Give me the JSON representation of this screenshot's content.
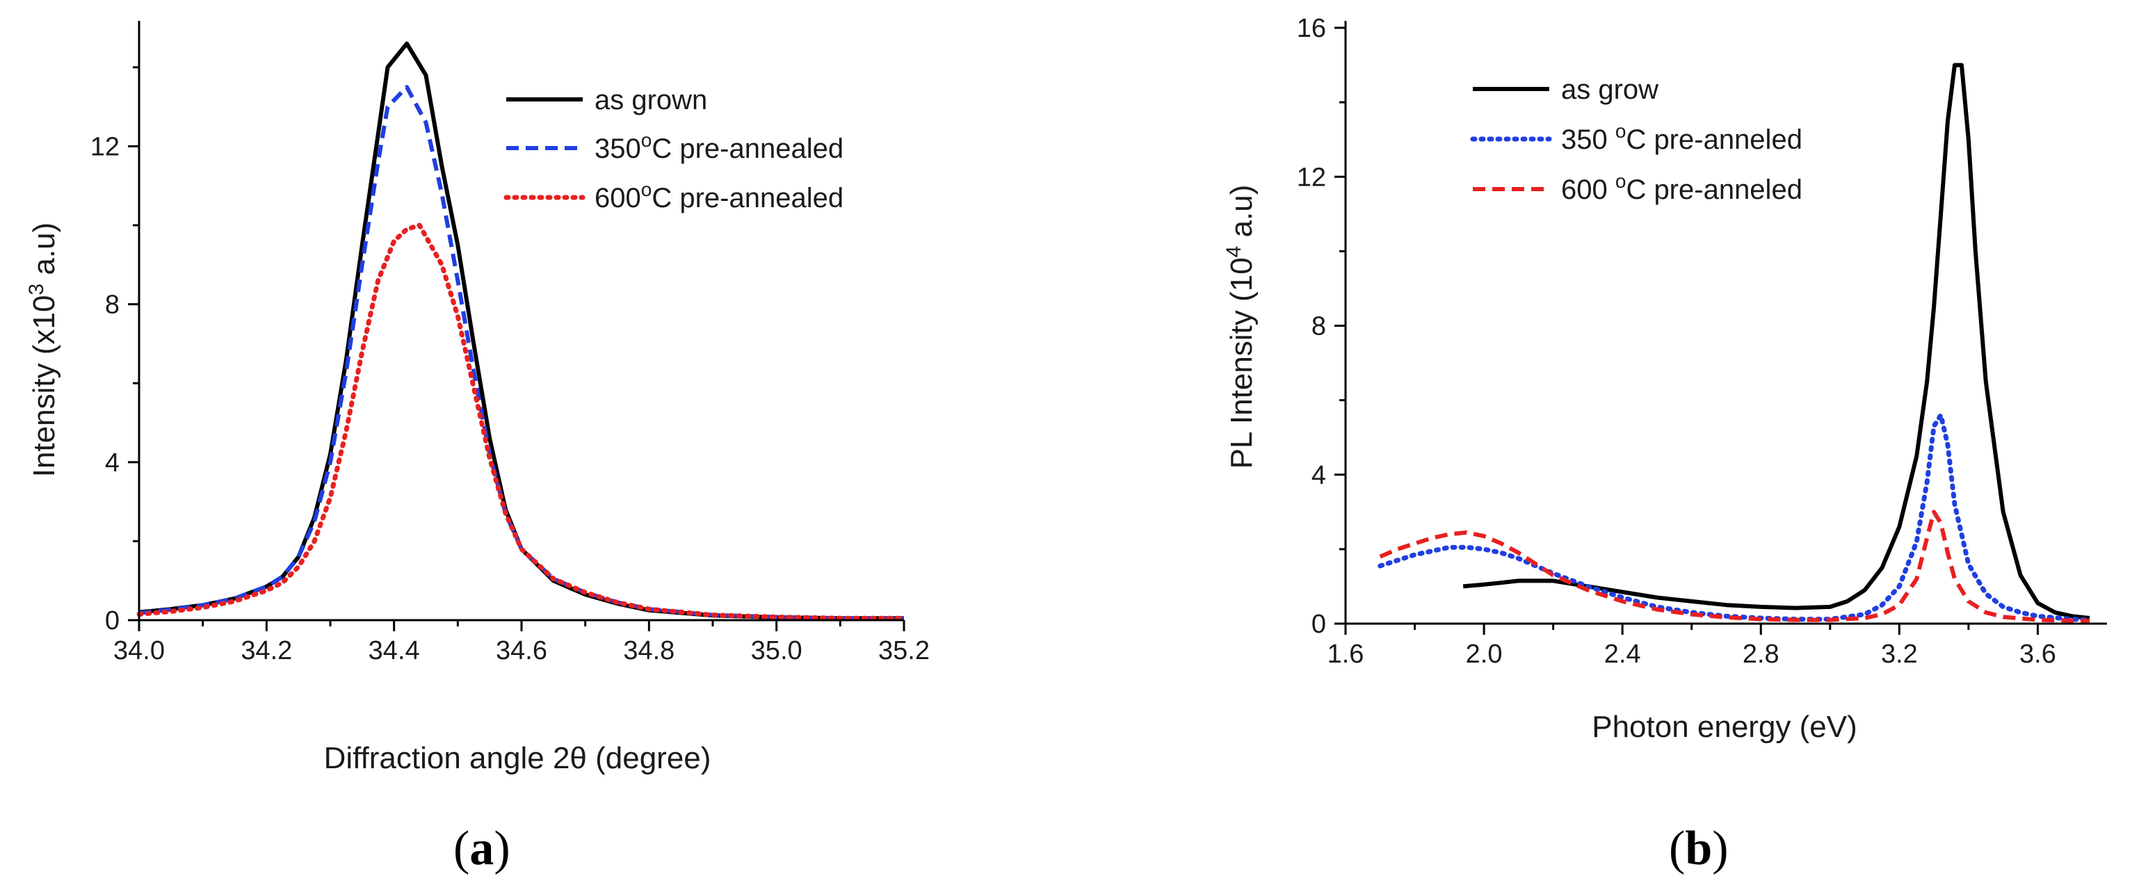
{
  "chart_data": [
    {
      "panel_label": "(a)",
      "panel_letter": "a",
      "type": "line",
      "xlabel": "Diffraction angle 2θ (degree)",
      "ylabel": {
        "prefix": "Intensity (x10",
        "sup": "3",
        "suffix": " a.u)"
      },
      "xlim": [
        34.0,
        35.2
      ],
      "ylim": [
        0,
        15
      ],
      "xticks": [
        34.0,
        34.2,
        34.4,
        34.6,
        34.8,
        35.0,
        35.2
      ],
      "xtick_labels": [
        "34.0",
        "34.2",
        "34.4",
        "34.6",
        "34.8",
        "35.0",
        "35.2"
      ],
      "yticks": [
        0,
        4,
        8,
        12
      ],
      "ytick_labels": [
        "0",
        "4",
        "8",
        "12"
      ],
      "legend_position": "top-right",
      "series": [
        {
          "name": "as grown",
          "legend": {
            "pre": "as grown",
            "sup": "",
            "post": ""
          },
          "color": "#000000",
          "style": "solid",
          "x": [
            34.0,
            34.05,
            34.1,
            34.15,
            34.2,
            34.225,
            34.25,
            34.275,
            34.3,
            34.325,
            34.35,
            34.375,
            34.39,
            34.42,
            34.45,
            34.475,
            34.5,
            34.525,
            34.55,
            34.575,
            34.6,
            34.65,
            34.7,
            34.75,
            34.8,
            34.9,
            35.0,
            35.1,
            35.2
          ],
          "y": [
            0.2,
            0.28,
            0.38,
            0.55,
            0.85,
            1.1,
            1.6,
            2.6,
            4.2,
            6.6,
            9.5,
            12.3,
            14.0,
            14.6,
            13.8,
            11.5,
            9.5,
            7.0,
            4.6,
            2.8,
            1.8,
            1.0,
            0.65,
            0.42,
            0.25,
            0.12,
            0.07,
            0.05,
            0.05
          ]
        },
        {
          "name": "350oC pre-annealed",
          "legend": {
            "pre": "350",
            "sup": "o",
            "post": "C pre-annealed"
          },
          "color": "#1f3fe0",
          "style": "dashed",
          "x": [
            34.0,
            34.05,
            34.1,
            34.15,
            34.2,
            34.225,
            34.25,
            34.275,
            34.3,
            34.325,
            34.35,
            34.375,
            34.39,
            34.42,
            34.45,
            34.475,
            34.5,
            34.525,
            34.55,
            34.575,
            34.6,
            34.65,
            34.7,
            34.75,
            34.8,
            34.9,
            35.0,
            35.1,
            35.2
          ],
          "y": [
            0.18,
            0.27,
            0.38,
            0.55,
            0.85,
            1.1,
            1.6,
            2.5,
            4.0,
            6.3,
            9.0,
            11.6,
            13.0,
            13.5,
            12.6,
            10.8,
            8.6,
            6.3,
            4.2,
            2.7,
            1.8,
            1.05,
            0.7,
            0.45,
            0.28,
            0.13,
            0.08,
            0.05,
            0.05
          ]
        },
        {
          "name": "600oC pre-annealed",
          "legend": {
            "pre": "600",
            "sup": "o",
            "post": "C pre-annealed"
          },
          "color": "#e82020",
          "style": "dotted",
          "x": [
            34.0,
            34.05,
            34.1,
            34.15,
            34.2,
            34.225,
            34.25,
            34.275,
            34.3,
            34.325,
            34.35,
            34.375,
            34.4,
            34.42,
            34.44,
            34.475,
            34.5,
            34.525,
            34.55,
            34.575,
            34.6,
            34.65,
            34.7,
            34.75,
            34.8,
            34.9,
            35.0,
            35.1,
            35.2
          ],
          "y": [
            0.15,
            0.22,
            0.32,
            0.48,
            0.75,
            0.95,
            1.35,
            2.0,
            3.1,
            4.8,
            6.8,
            8.6,
            9.6,
            9.9,
            10.0,
            9.0,
            7.7,
            5.9,
            4.1,
            2.7,
            1.8,
            1.05,
            0.7,
            0.45,
            0.28,
            0.13,
            0.08,
            0.05,
            0.05
          ]
        }
      ]
    },
    {
      "panel_label": "(b)",
      "panel_letter": "b",
      "type": "line",
      "xlabel": "Photon energy (eV)",
      "ylabel": {
        "prefix": "PL Intensity (10",
        "sup": "4",
        "suffix": " a.u)"
      },
      "xlim": [
        1.6,
        3.8
      ],
      "ylim": [
        0,
        16
      ],
      "xticks": [
        1.6,
        2.0,
        2.4,
        2.8,
        3.2,
        3.6
      ],
      "xtick_labels": [
        "1.6",
        "2.0",
        "2.4",
        "2.8",
        "3.2",
        "3.6"
      ],
      "yticks": [
        0,
        4,
        8,
        12,
        16
      ],
      "ytick_labels": [
        "0",
        "4",
        "8",
        "12",
        "16"
      ],
      "legend_position": "top-left",
      "series": [
        {
          "name": "as grow",
          "legend": {
            "pre": "as grow",
            "sup": "",
            "post": ""
          },
          "color": "#000000",
          "style": "solid",
          "x": [
            1.94,
            2.0,
            2.1,
            2.2,
            2.3,
            2.4,
            2.5,
            2.6,
            2.7,
            2.8,
            2.9,
            3.0,
            3.05,
            3.1,
            3.15,
            3.2,
            3.25,
            3.28,
            3.3,
            3.32,
            3.34,
            3.36,
            3.38,
            3.4,
            3.42,
            3.45,
            3.5,
            3.55,
            3.6,
            3.65,
            3.7,
            3.75
          ],
          "y": [
            1.0,
            1.05,
            1.15,
            1.15,
            1.0,
            0.85,
            0.7,
            0.6,
            0.5,
            0.45,
            0.42,
            0.45,
            0.6,
            0.9,
            1.5,
            2.6,
            4.5,
            6.5,
            8.5,
            11.0,
            13.5,
            15.0,
            15.0,
            13.0,
            10.0,
            6.5,
            3.0,
            1.3,
            0.55,
            0.3,
            0.2,
            0.15
          ]
        },
        {
          "name": "350 oC pre-anneled",
          "legend": {
            "pre": "350 ",
            "sup": "o",
            "post": "C pre-anneled"
          },
          "color": "#1f3fe0",
          "style": "dotted",
          "x": [
            1.7,
            1.75,
            1.8,
            1.85,
            1.9,
            1.95,
            2.0,
            2.05,
            2.1,
            2.15,
            2.2,
            2.3,
            2.4,
            2.5,
            2.6,
            2.7,
            2.8,
            2.9,
            3.0,
            3.1,
            3.15,
            3.2,
            3.25,
            3.28,
            3.3,
            3.32,
            3.34,
            3.36,
            3.4,
            3.45,
            3.5,
            3.55,
            3.6,
            3.7,
            3.75
          ],
          "y": [
            1.55,
            1.7,
            1.85,
            1.95,
            2.05,
            2.05,
            2.0,
            1.9,
            1.75,
            1.55,
            1.35,
            1.0,
            0.7,
            0.45,
            0.3,
            0.2,
            0.15,
            0.12,
            0.12,
            0.25,
            0.5,
            1.0,
            2.2,
            3.8,
            5.3,
            5.6,
            4.8,
            3.2,
            1.6,
            0.8,
            0.45,
            0.3,
            0.2,
            0.12,
            0.1
          ]
        },
        {
          "name": "600 oC pre-anneled",
          "legend": {
            "pre": "600 ",
            "sup": "o",
            "post": "C pre-anneled"
          },
          "color": "#e82020",
          "style": "dashed",
          "x": [
            1.7,
            1.75,
            1.8,
            1.85,
            1.9,
            1.95,
            2.0,
            2.05,
            2.1,
            2.15,
            2.2,
            2.3,
            2.4,
            2.5,
            2.6,
            2.7,
            2.8,
            2.9,
            3.0,
            3.1,
            3.15,
            3.2,
            3.25,
            3.28,
            3.3,
            3.32,
            3.34,
            3.36,
            3.4,
            3.45,
            3.5,
            3.6,
            3.7,
            3.75
          ],
          "y": [
            1.8,
            2.0,
            2.15,
            2.3,
            2.4,
            2.45,
            2.35,
            2.15,
            1.9,
            1.6,
            1.3,
            0.9,
            0.6,
            0.38,
            0.25,
            0.17,
            0.12,
            0.1,
            0.1,
            0.15,
            0.25,
            0.5,
            1.2,
            2.3,
            3.0,
            2.7,
            1.9,
            1.2,
            0.6,
            0.3,
            0.18,
            0.1,
            0.08,
            0.08
          ]
        }
      ]
    }
  ]
}
